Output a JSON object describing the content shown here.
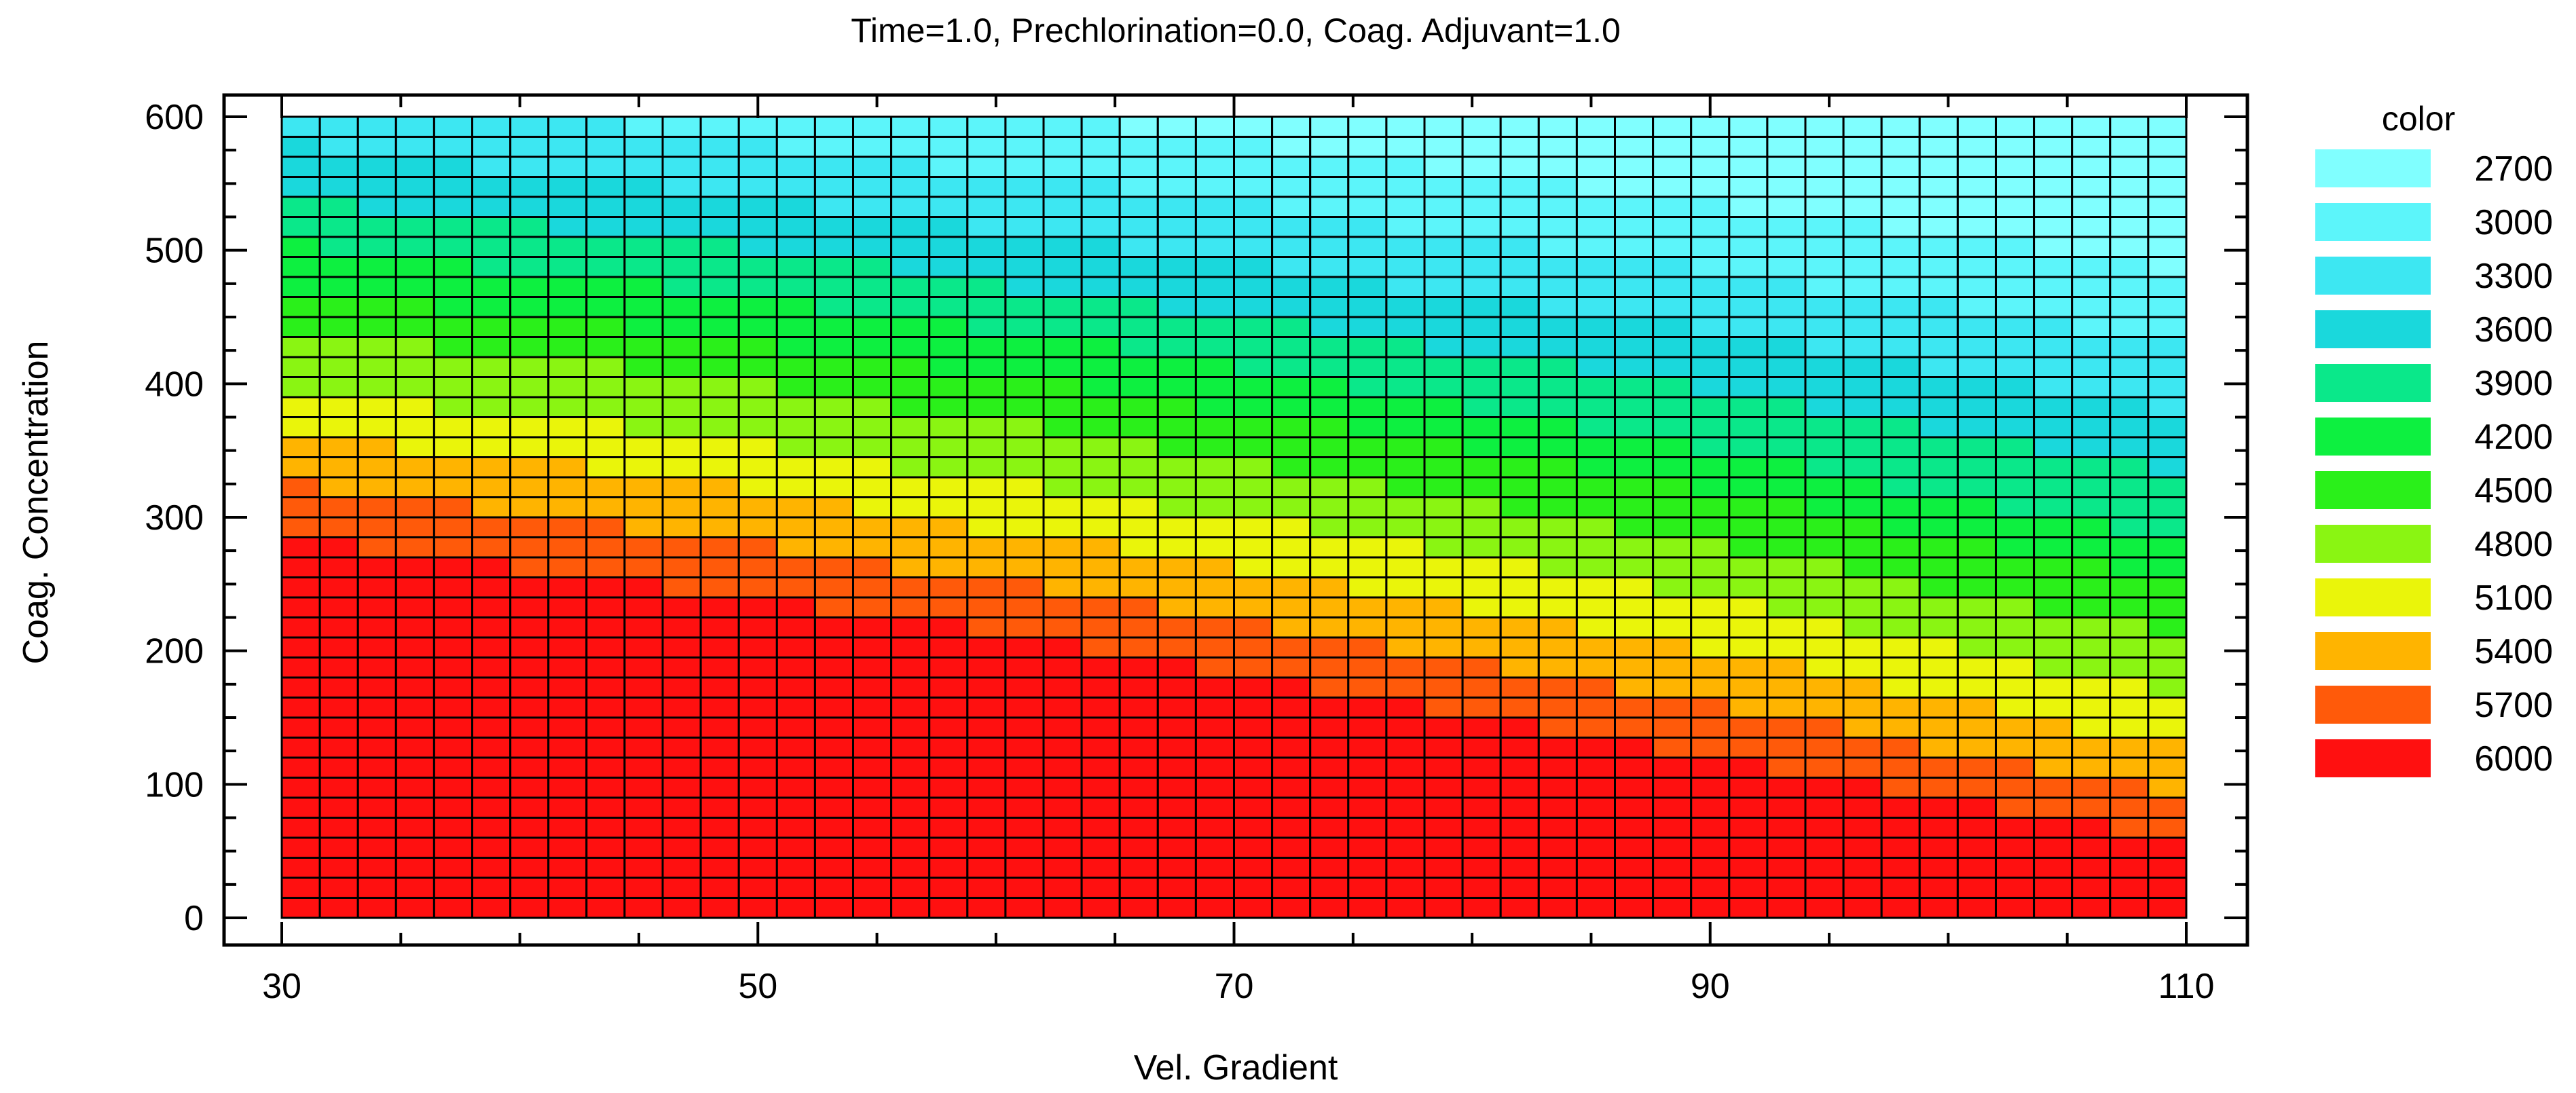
{
  "chart_data": {
    "type": "heatmap",
    "title": "Time=1.0, Prechlorination=0.0, Coag. Adjuvant=1.0",
    "xlabel": "Vel. Gradient",
    "ylabel": "Coag. Concentration",
    "xlim": [
      30,
      110
    ],
    "ylim": [
      0,
      600
    ],
    "x_ticks": [
      30,
      50,
      70,
      90,
      110
    ],
    "y_ticks": [
      0,
      100,
      200,
      300,
      400,
      500,
      600
    ],
    "grid_columns": 50,
    "grid_rows": 40,
    "legend": {
      "title": "color",
      "position": "right",
      "levels": [
        {
          "label": "2700",
          "value": 2700,
          "color": "#80FFFF"
        },
        {
          "label": "3000",
          "value": 3000,
          "color": "#5CF5FA"
        },
        {
          "label": "3300",
          "value": 3300,
          "color": "#3DE7F2"
        },
        {
          "label": "3600",
          "value": 3600,
          "color": "#1AD8DC"
        },
        {
          "label": "3900",
          "value": 3900,
          "color": "#0AE88A"
        },
        {
          "label": "4200",
          "value": 4200,
          "color": "#0DF040"
        },
        {
          "label": "4500",
          "value": 4500,
          "color": "#2AF01A"
        },
        {
          "label": "4800",
          "value": 4800,
          "color": "#8AF512"
        },
        {
          "label": "5100",
          "value": 5100,
          "color": "#EAF50A"
        },
        {
          "label": "5400",
          "value": 5400,
          "color": "#FFB400"
        },
        {
          "label": "5700",
          "value": 5700,
          "color": "#FF5A0A"
        },
        {
          "label": "6000",
          "value": 6000,
          "color": "#FF1010"
        }
      ]
    },
    "iso_level_boundaries": [
      {
        "level": 6000,
        "coag_at": [
          {
            "x": 30,
            "y": 285
          },
          {
            "x": 50,
            "y": 240
          },
          {
            "x": 70,
            "y": 185
          },
          {
            "x": 90,
            "y": 120
          },
          {
            "x": 110,
            "y": 55
          }
        ]
      },
      {
        "level": 5700,
        "coag_at": [
          {
            "x": 30,
            "y": 325
          },
          {
            "x": 50,
            "y": 280
          },
          {
            "x": 70,
            "y": 225
          },
          {
            "x": 90,
            "y": 160
          },
          {
            "x": 110,
            "y": 90
          }
        ]
      },
      {
        "level": 5400,
        "coag_at": [
          {
            "x": 30,
            "y": 365
          },
          {
            "x": 50,
            "y": 320
          },
          {
            "x": 70,
            "y": 262
          },
          {
            "x": 90,
            "y": 200
          },
          {
            "x": 110,
            "y": 125
          }
        ]
      },
      {
        "level": 5100,
        "coag_at": [
          {
            "x": 30,
            "y": 395
          },
          {
            "x": 50,
            "y": 355
          },
          {
            "x": 70,
            "y": 300
          },
          {
            "x": 90,
            "y": 240
          },
          {
            "x": 110,
            "y": 165
          }
        ]
      },
      {
        "level": 4800,
        "coag_at": [
          {
            "x": 30,
            "y": 440
          },
          {
            "x": 50,
            "y": 400
          },
          {
            "x": 70,
            "y": 345
          },
          {
            "x": 90,
            "y": 280
          },
          {
            "x": 110,
            "y": 210
          }
        ]
      },
      {
        "level": 4500,
        "coag_at": [
          {
            "x": 30,
            "y": 470
          },
          {
            "x": 50,
            "y": 430
          },
          {
            "x": 70,
            "y": 380
          },
          {
            "x": 90,
            "y": 320
          },
          {
            "x": 110,
            "y": 250
          }
        ]
      },
      {
        "level": 4200,
        "coag_at": [
          {
            "x": 30,
            "y": 505
          },
          {
            "x": 50,
            "y": 465
          },
          {
            "x": 70,
            "y": 415
          },
          {
            "x": 90,
            "y": 350
          },
          {
            "x": 110,
            "y": 280
          }
        ]
      },
      {
        "level": 3900,
        "coag_at": [
          {
            "x": 30,
            "y": 540
          },
          {
            "x": 50,
            "y": 500
          },
          {
            "x": 70,
            "y": 450
          },
          {
            "x": 90,
            "y": 395
          },
          {
            "x": 110,
            "y": 335
          }
        ]
      },
      {
        "level": 3600,
        "coag_at": [
          {
            "x": 30,
            "y": 580
          },
          {
            "x": 50,
            "y": 540
          },
          {
            "x": 70,
            "y": 490
          },
          {
            "x": 90,
            "y": 440
          },
          {
            "x": 110,
            "y": 380
          }
        ]
      },
      {
        "level": 3300,
        "coag_at": [
          {
            "x": 30,
            "y": 620
          },
          {
            "x": 50,
            "y": 580
          },
          {
            "x": 70,
            "y": 535
          },
          {
            "x": 90,
            "y": 485
          },
          {
            "x": 110,
            "y": 430
          }
        ]
      },
      {
        "level": 3000,
        "coag_at": [
          {
            "x": 30,
            "y": 660
          },
          {
            "x": 50,
            "y": 625
          },
          {
            "x": 70,
            "y": 580
          },
          {
            "x": 90,
            "y": 535
          },
          {
            "x": 110,
            "y": 485
          }
        ]
      }
    ]
  }
}
